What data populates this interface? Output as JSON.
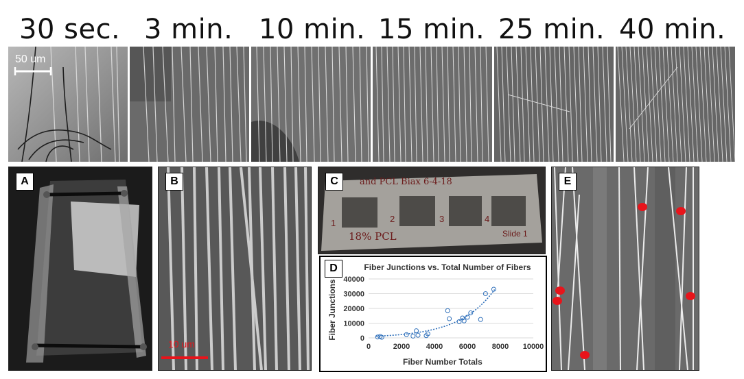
{
  "time_labels": [
    "30 sec.",
    "3 min.",
    "10 min.",
    "15 min.",
    "25 min.",
    "40 min."
  ],
  "strip_scale_bar": "50 um",
  "panels": {
    "a": {
      "label": "A"
    },
    "b": {
      "label": "B",
      "scale_bar": "10 um"
    },
    "c": {
      "label": "C",
      "handwriting": [
        "and PCL Biax 6-4-18",
        "1",
        "2",
        "3",
        "4",
        "18% PCL",
        "Slide 1"
      ]
    },
    "d": {
      "label": "D"
    },
    "e": {
      "label": "E"
    }
  },
  "colors": {
    "scale_bar_b": "#e8141b",
    "marker": "#e8141b",
    "series": "#2e6fba",
    "trend": "#2e6fba"
  },
  "chart_data": {
    "type": "scatter",
    "title": "Fiber Junctions vs. Total Number of Fibers",
    "xlabel": "Fiber Number Totals",
    "ylabel": "Fiber Junctions",
    "xlim": [
      0,
      10000
    ],
    "ylim": [
      0,
      40000
    ],
    "xticks": [
      "0",
      "2000",
      "4000",
      "6000",
      "8000",
      "10000"
    ],
    "yticks": [
      "0",
      "10000",
      "20000",
      "30000",
      "40000"
    ],
    "grid": true,
    "trendline": "exponential, dotted",
    "points": [
      {
        "x": 550,
        "y": 600
      },
      {
        "x": 700,
        "y": 1000
      },
      {
        "x": 800,
        "y": 400
      },
      {
        "x": 2300,
        "y": 2200
      },
      {
        "x": 2700,
        "y": 1200
      },
      {
        "x": 2900,
        "y": 4800
      },
      {
        "x": 3000,
        "y": 1800
      },
      {
        "x": 3500,
        "y": 1500
      },
      {
        "x": 3600,
        "y": 2800
      },
      {
        "x": 4800,
        "y": 18500
      },
      {
        "x": 4900,
        "y": 13000
      },
      {
        "x": 5500,
        "y": 11000
      },
      {
        "x": 5700,
        "y": 13500
      },
      {
        "x": 5800,
        "y": 11500
      },
      {
        "x": 6000,
        "y": 14000
      },
      {
        "x": 6200,
        "y": 17000
      },
      {
        "x": 6800,
        "y": 12500
      },
      {
        "x": 7100,
        "y": 30000
      },
      {
        "x": 7600,
        "y": 33000
      }
    ]
  }
}
